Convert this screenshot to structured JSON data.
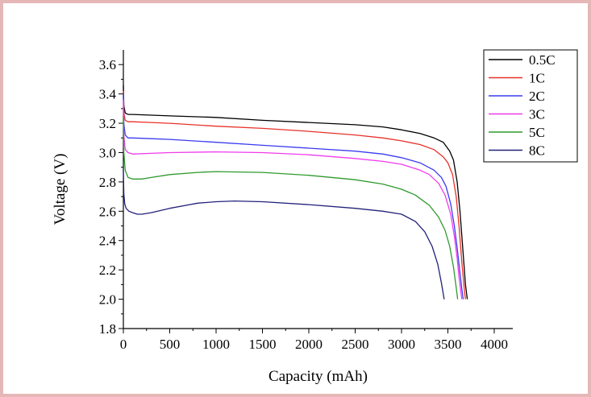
{
  "chart_data": {
    "type": "line",
    "title": "",
    "xlabel": "Capacity (mAh)",
    "ylabel": "Voltage (V)",
    "xlim": [
      0,
      4200
    ],
    "ylim": [
      1.8,
      3.7
    ],
    "xticks": [
      0,
      500,
      1000,
      1500,
      2000,
      2500,
      3000,
      3500,
      4000
    ],
    "yticks": [
      1.8,
      2.0,
      2.2,
      2.4,
      2.6,
      2.8,
      3.0,
      3.2,
      3.4,
      3.6
    ],
    "ytick_labels": [
      "1.8",
      "2.0",
      "2.2",
      "2.4",
      "2.6",
      "2.8",
      "3.0",
      "3.2",
      "3.4",
      "3.6"
    ],
    "grid": false,
    "legend": "top-right",
    "series": [
      {
        "name": "0.5C",
        "color": "#000000",
        "x": [
          0,
          5,
          20,
          50,
          100,
          300,
          500,
          1000,
          1500,
          2000,
          2500,
          2800,
          3000,
          3200,
          3350,
          3450,
          3520,
          3560,
          3600,
          3630,
          3660,
          3690,
          3710
        ],
        "y": [
          3.46,
          3.32,
          3.27,
          3.26,
          3.26,
          3.255,
          3.25,
          3.24,
          3.22,
          3.205,
          3.19,
          3.175,
          3.155,
          3.13,
          3.1,
          3.07,
          3.01,
          2.95,
          2.8,
          2.6,
          2.35,
          2.1,
          2.0
        ]
      },
      {
        "name": "1C",
        "color": "#e8312a",
        "x": [
          0,
          5,
          20,
          50,
          100,
          300,
          500,
          1000,
          1500,
          2000,
          2500,
          2800,
          3000,
          3200,
          3350,
          3450,
          3500,
          3550,
          3590,
          3620,
          3650,
          3680,
          3690
        ],
        "y": [
          3.42,
          3.27,
          3.22,
          3.21,
          3.21,
          3.205,
          3.2,
          3.18,
          3.165,
          3.145,
          3.12,
          3.1,
          3.08,
          3.055,
          3.02,
          2.97,
          2.93,
          2.85,
          2.7,
          2.5,
          2.25,
          2.05,
          2.0
        ]
      },
      {
        "name": "2C",
        "color": "#3b3bf0",
        "x": [
          0,
          5,
          20,
          50,
          100,
          300,
          500,
          1000,
          1500,
          2000,
          2500,
          2800,
          3000,
          3200,
          3350,
          3430,
          3480,
          3530,
          3570,
          3600,
          3630,
          3650,
          3665
        ],
        "y": [
          3.4,
          3.2,
          3.12,
          3.1,
          3.1,
          3.095,
          3.09,
          3.07,
          3.05,
          3.03,
          3.01,
          2.99,
          2.965,
          2.93,
          2.88,
          2.83,
          2.77,
          2.65,
          2.5,
          2.35,
          2.18,
          2.07,
          2.0
        ]
      },
      {
        "name": "3C",
        "color": "#ee3bee",
        "x": [
          0,
          5,
          20,
          50,
          100,
          300,
          500,
          1000,
          1500,
          2000,
          2500,
          2800,
          3000,
          3200,
          3300,
          3400,
          3470,
          3530,
          3570,
          3600,
          3620,
          3640,
          3650
        ],
        "y": [
          3.36,
          3.12,
          3.02,
          3.0,
          2.99,
          2.995,
          3.0,
          3.005,
          3.0,
          2.985,
          2.96,
          2.94,
          2.92,
          2.88,
          2.85,
          2.79,
          2.71,
          2.58,
          2.43,
          2.28,
          2.15,
          2.05,
          2.0
        ]
      },
      {
        "name": "5C",
        "color": "#2e9a2e",
        "x": [
          0,
          5,
          20,
          50,
          100,
          200,
          300,
          500,
          800,
          1000,
          1500,
          2000,
          2500,
          2800,
          3000,
          3150,
          3300,
          3400,
          3470,
          3520,
          3560,
          3590,
          3605
        ],
        "y": [
          3.24,
          3.0,
          2.88,
          2.83,
          2.82,
          2.82,
          2.83,
          2.85,
          2.865,
          2.87,
          2.865,
          2.845,
          2.815,
          2.785,
          2.75,
          2.71,
          2.64,
          2.56,
          2.47,
          2.36,
          2.22,
          2.08,
          2.0
        ]
      },
      {
        "name": "8C",
        "color": "#22227a",
        "x": [
          0,
          5,
          15,
          30,
          60,
          100,
          150,
          200,
          300,
          500,
          800,
          1000,
          1200,
          1500,
          2000,
          2500,
          2800,
          3000,
          3150,
          3250,
          3330,
          3390,
          3430,
          3460
        ],
        "y": [
          2.88,
          2.72,
          2.65,
          2.62,
          2.6,
          2.59,
          2.58,
          2.58,
          2.59,
          2.62,
          2.655,
          2.665,
          2.67,
          2.665,
          2.645,
          2.62,
          2.6,
          2.58,
          2.53,
          2.46,
          2.36,
          2.24,
          2.11,
          2.0
        ]
      }
    ]
  }
}
